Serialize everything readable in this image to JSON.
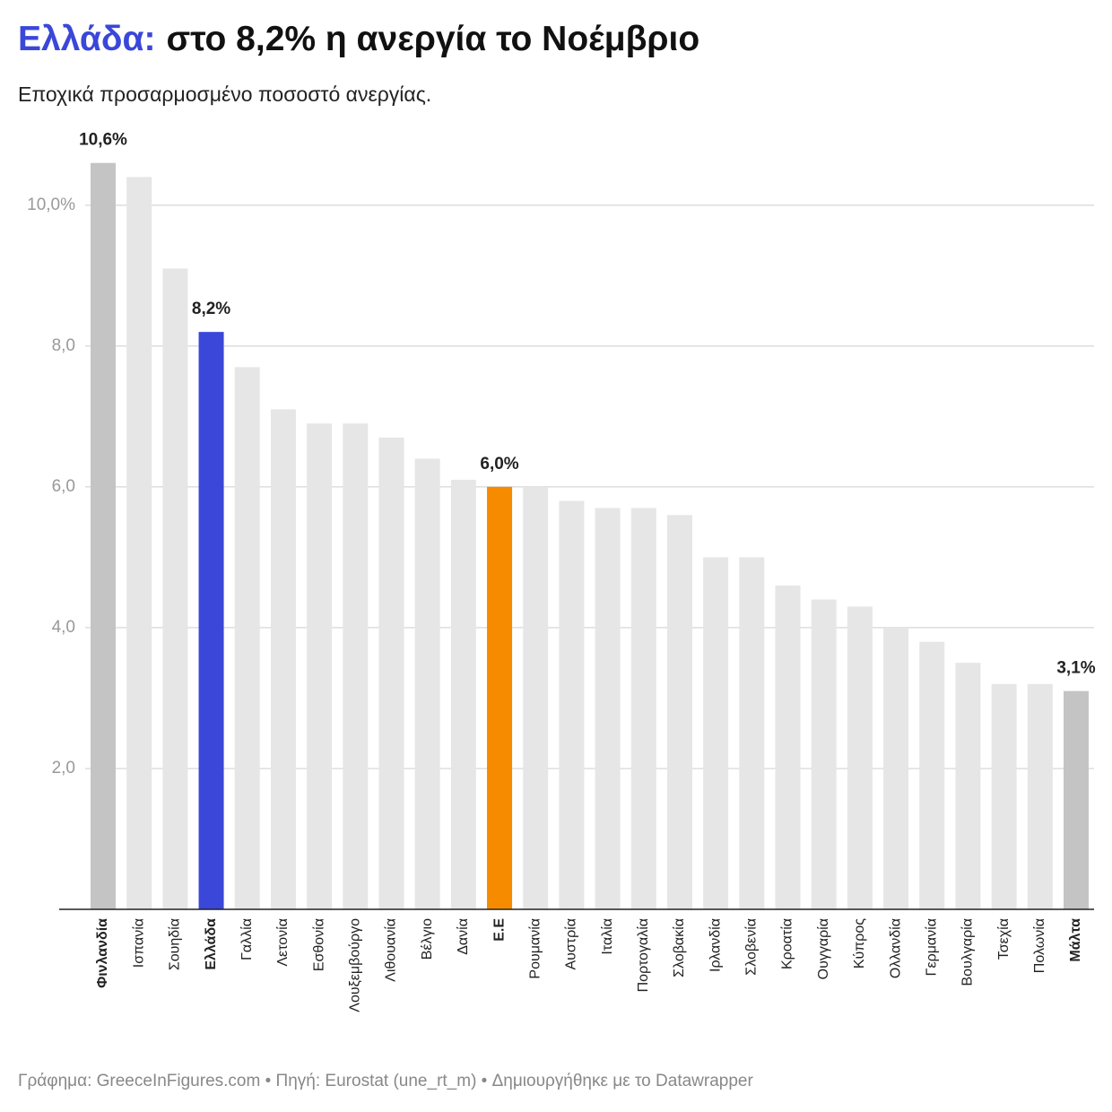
{
  "chart_data": {
    "type": "bar",
    "title_parts": [
      {
        "text": "Ελλάδα:",
        "color": "#3a47d8"
      },
      {
        "text": "στο 8,2% η ανεργία το Νοέμβριο",
        "color": "#111111"
      }
    ],
    "subtitle": "Εποχικά προσαρμοσμένο ποσοστό ανεργίας.",
    "categories": [
      "Φινλανδία",
      "Ισπανία",
      "Σουηδία",
      "Ελλάδα",
      "Γαλλία",
      "Λετονία",
      "Εσθονία",
      "Λουξεμβούργο",
      "Λιθουανία",
      "Βέλγιο",
      "Δανία",
      "Ε.Ε",
      "Ρουμανία",
      "Αυστρία",
      "Ιταλία",
      "Πορτογαλία",
      "Σλοβακία",
      "Ιρλανδία",
      "Σλοβενία",
      "Κροατία",
      "Ουγγαρία",
      "Κύπρος",
      "Ολλανδία",
      "Γερμανία",
      "Βουλγαρία",
      "Τσεχία",
      "Πολωνία",
      "Μάλτα"
    ],
    "values": [
      10.6,
      10.4,
      9.1,
      8.2,
      7.7,
      7.1,
      6.9,
      6.9,
      6.7,
      6.4,
      6.1,
      6.0,
      6.0,
      5.8,
      5.7,
      5.7,
      5.6,
      5.0,
      5.0,
      4.6,
      4.4,
      4.3,
      4.0,
      3.8,
      3.5,
      3.2,
      3.2,
      3.1
    ],
    "value_labels": [
      "10,6%",
      null,
      null,
      "8,2%",
      null,
      null,
      null,
      null,
      null,
      null,
      null,
      "6,0%",
      null,
      null,
      null,
      null,
      null,
      null,
      null,
      null,
      null,
      null,
      null,
      null,
      null,
      null,
      null,
      "3,1%"
    ],
    "colors": [
      "#c4c4c4",
      "#e6e6e6",
      "#e6e6e6",
      "#3a47d8",
      "#e6e6e6",
      "#e6e6e6",
      "#e6e6e6",
      "#e6e6e6",
      "#e6e6e6",
      "#e6e6e6",
      "#e6e6e6",
      "#f68b00",
      "#e6e6e6",
      "#e6e6e6",
      "#e6e6e6",
      "#e6e6e6",
      "#e6e6e6",
      "#e6e6e6",
      "#e6e6e6",
      "#e6e6e6",
      "#e6e6e6",
      "#e6e6e6",
      "#e6e6e6",
      "#e6e6e6",
      "#e6e6e6",
      "#e6e6e6",
      "#e6e6e6",
      "#c4c4c4"
    ],
    "ylim": [
      0,
      10.8
    ],
    "yticks": [
      {
        "value": 2,
        "label": "2,0"
      },
      {
        "value": 4,
        "label": "4,0"
      },
      {
        "value": 6,
        "label": "6,0"
      },
      {
        "value": 8,
        "label": "8,0"
      },
      {
        "value": 10,
        "label": "10,0%"
      }
    ],
    "grid": true,
    "source": "Γράφημα: GreeceInFigures.com • Πηγή: Eurostat (une_rt_m) • Δημιουργήθηκε με το Datawrapper"
  }
}
